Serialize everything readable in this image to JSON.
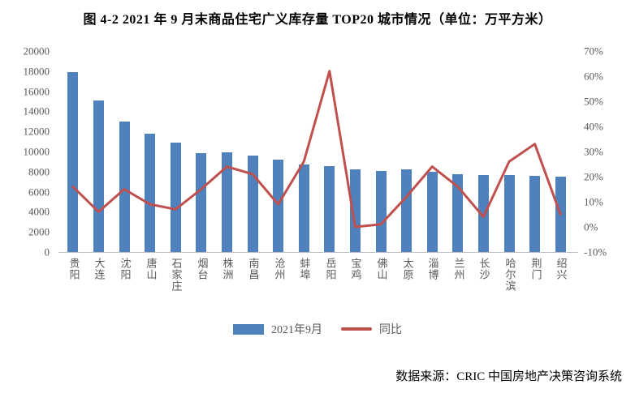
{
  "title": "图 4-2 2021 年 9 月末商品住宅广义库存量 TOP20 城市情况（单位：万平方米）",
  "footer": "数据来源：CRIC 中国房地产决策咨询系统",
  "legend": {
    "bar_label": "2021年9月",
    "line_label": "同比"
  },
  "colors": {
    "bar": "#4F81BD",
    "line": "#C0504D",
    "axis_text": "#595959",
    "axis_line": "#BFBFBF",
    "title_text": "#000000"
  },
  "chart_data": {
    "type": "bar",
    "subtype": "bar+line combo, dual axis",
    "title": "图 4-2 2021 年 9 月末商品住宅广义库存量 TOP20 城市情况（单位：万平方米）",
    "categories": [
      "贵阳",
      "大连",
      "沈阳",
      "唐山",
      "石家庄",
      "烟台",
      "株洲",
      "南昌",
      "沧州",
      "蚌埠",
      "岳阳",
      "宝鸡",
      "佛山",
      "太原",
      "淄博",
      "兰州",
      "长沙",
      "哈尔滨",
      "荆门",
      "绍兴"
    ],
    "series": [
      {
        "name": "2021年9月",
        "type": "bar",
        "axis": "left",
        "unit": "万平方米",
        "values": [
          17900,
          15100,
          13000,
          11800,
          10900,
          9800,
          9900,
          9600,
          9200,
          8700,
          8550,
          8250,
          8100,
          8250,
          8000,
          7750,
          7700,
          7700,
          7550,
          7480
        ]
      },
      {
        "name": "同比",
        "type": "line",
        "axis": "right",
        "unit": "%",
        "values": [
          16,
          6,
          15,
          9,
          7,
          15,
          24,
          21,
          9,
          26,
          62,
          0,
          1,
          12,
          24,
          16,
          4,
          26,
          33,
          5
        ]
      }
    ],
    "left_axis": {
      "min": 0,
      "max": 20000,
      "step": 2000,
      "tick_labels_top_to_bottom": [
        "20000",
        "18000",
        "16000",
        "14000",
        "12000",
        "10000",
        "8000",
        "6000",
        "4000",
        "2000",
        "0"
      ]
    },
    "right_axis": {
      "min": -10,
      "max": 70,
      "step": 10,
      "tick_labels_top_to_bottom": [
        "70%",
        "60%",
        "50%",
        "40%",
        "30%",
        "20%",
        "10%",
        "0%",
        "-10%"
      ]
    },
    "grid": false,
    "legend_position": "bottom"
  }
}
